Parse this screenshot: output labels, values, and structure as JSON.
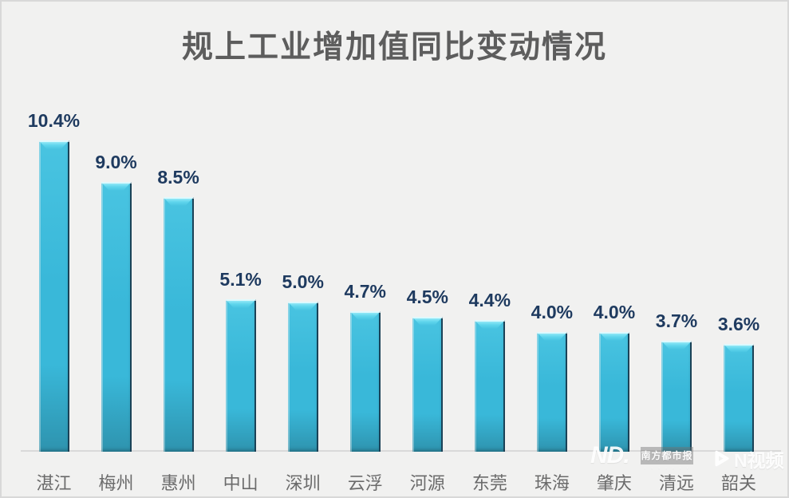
{
  "chart_data": {
    "type": "bar",
    "title": "规上工业增加值同比变动情况",
    "categories": [
      "湛江",
      "梅州",
      "惠州",
      "中山",
      "深圳",
      "云浮",
      "河源",
      "东莞",
      "珠海",
      "肇庆",
      "清远",
      "韶关"
    ],
    "values": [
      10.4,
      9.0,
      8.5,
      5.1,
      5.0,
      4.7,
      4.5,
      4.4,
      4.0,
      4.0,
      3.7,
      3.6
    ],
    "value_labels": [
      "10.4%",
      "9.0%",
      "8.5%",
      "5.1%",
      "5.0%",
      "4.7%",
      "4.5%",
      "4.4%",
      "4.0%",
      "4.0%",
      "3.7%",
      "3.6%"
    ],
    "xlabel": "",
    "ylabel": "",
    "ylim": [
      0,
      11
    ],
    "grid": false,
    "legend": false,
    "colors": {
      "background": "#f1f1f0",
      "frame_border": "#d8d8d8",
      "title": "#5d5d5d",
      "bar_top": "#49c4e1",
      "bar_mid": "#39b8d9",
      "bar_bottom": "#2e93ae",
      "bar_cap_light": "#a9f2fc",
      "bar_cap": "#5fd5ec",
      "bar_edge_dark": "#1b4257",
      "value_label": "#1e3a5f",
      "category_label": "#6b6b6b",
      "axis_line": "#d9d9d9"
    }
  },
  "watermark": {
    "nd_logo": "ND.",
    "brand": "南方都市报",
    "video_brand": "N视频"
  }
}
